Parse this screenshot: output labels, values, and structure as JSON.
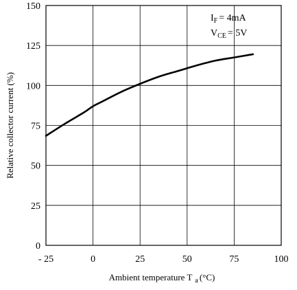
{
  "chart_data": {
    "type": "line",
    "title": "",
    "xlabel": "Ambient temperature T",
    "xlabel_sub": "a",
    "xlabel_unit": "(°C)",
    "ylabel": "Relative collector current  (%)",
    "xlim": [
      -25,
      100
    ],
    "ylim": [
      0,
      150
    ],
    "x_ticks": [
      -25,
      0,
      25,
      50,
      75,
      100
    ],
    "x_tick_labels": [
      "- 25",
      "0",
      "25",
      "50",
      "75",
      "100"
    ],
    "y_ticks": [
      0,
      25,
      50,
      75,
      100,
      125,
      150
    ],
    "y_tick_labels": [
      "0",
      "25",
      "50",
      "75",
      "100",
      "125",
      "150"
    ],
    "grid": true,
    "series": [
      {
        "x": [
          -25,
          -15,
          -5,
          0,
          5,
          15,
          25,
          35,
          45,
          55,
          65,
          75,
          85
        ],
        "y": [
          68.5,
          76,
          83,
          87,
          90,
          96,
          101,
          105.5,
          109,
          112.5,
          115.5,
          117.5,
          119.5
        ]
      }
    ],
    "annotation": {
      "line1_main": "I",
      "line1_sub": "F",
      "line1_rest": "= 4mA",
      "line2_main": "V",
      "line2_sub": "CE",
      "line2_rest": "= 5V"
    },
    "colors": {
      "axis": "#000000",
      "grid": "#000000",
      "curve": "#000000"
    }
  }
}
